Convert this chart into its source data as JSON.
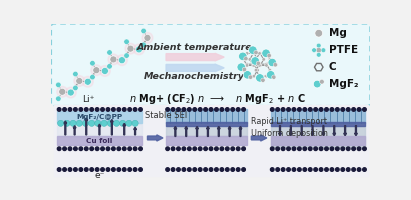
{
  "bg_color": "#f2f2f2",
  "top_box_bg": "#eaf8fb",
  "top_box_border": "#88d0dd",
  "bottom_bg": "#f8f8f8",
  "teal": "#5ecece",
  "gray_atom": "#b0b0b0",
  "pink_arrow": "#f0d0dc",
  "blue_arrow": "#c0d8f0",
  "sei_blue": "#a8c8e0",
  "sei_dark": "#6878a8",
  "cu_purple": "#b0a8d0",
  "li_gray": "#c8d4e0",
  "dot_dark": "#1a1a3a",
  "arrow_blue": "#5060a0",
  "title_top": "Ambient temperature",
  "title_bottom": "Mechanochemistry",
  "legend_items": [
    "Mg",
    "PTFE",
    "C",
    "MgF₂"
  ],
  "font_eq": 7.0,
  "font_label": 6.0,
  "font_legend": 7.5
}
